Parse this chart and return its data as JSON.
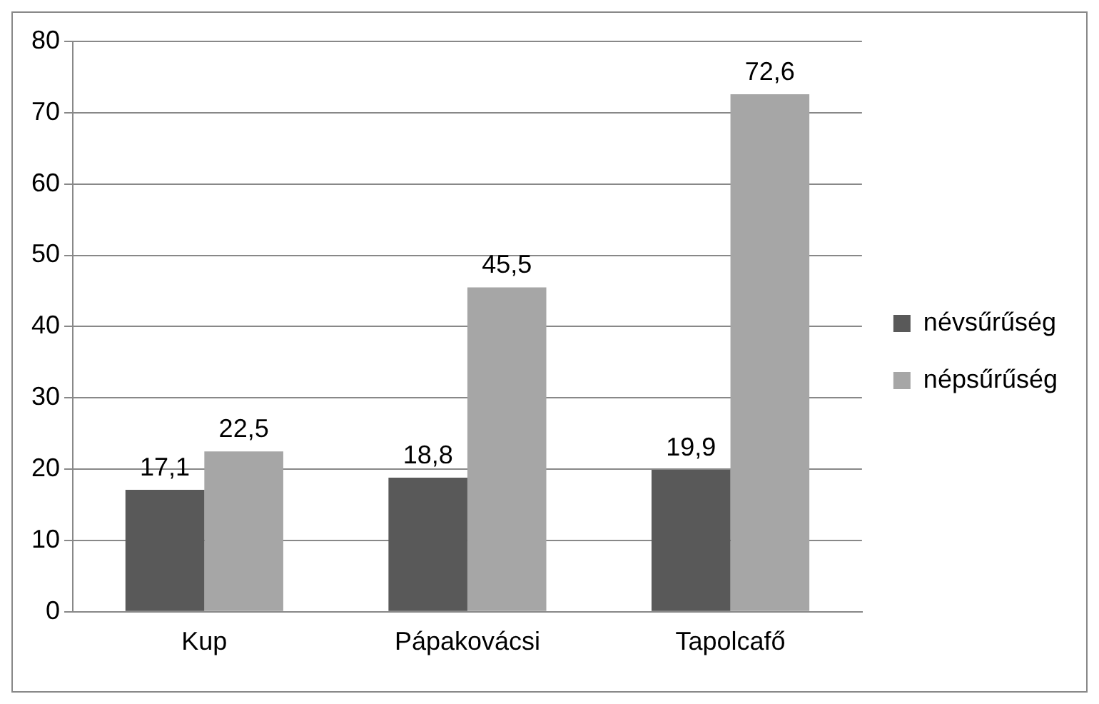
{
  "chart_data": {
    "type": "bar",
    "categories": [
      "Kup",
      "Pápakovácsi",
      "Tapolcafő"
    ],
    "series": [
      {
        "name": "névsűrűség",
        "color": "#595959",
        "values": [
          17.1,
          18.8,
          19.9
        ],
        "value_labels": [
          "17,1",
          "18,8",
          "19,9"
        ]
      },
      {
        "name": "népsűrűség",
        "color": "#a6a6a6",
        "values": [
          22.5,
          45.5,
          72.6
        ],
        "value_labels": [
          "22,5",
          "45,5",
          "72,6"
        ]
      }
    ],
    "ylim": [
      0,
      80
    ],
    "yticks": [
      0,
      10,
      20,
      30,
      40,
      50,
      60,
      70,
      80
    ],
    "grid": "y",
    "legend": "right"
  }
}
